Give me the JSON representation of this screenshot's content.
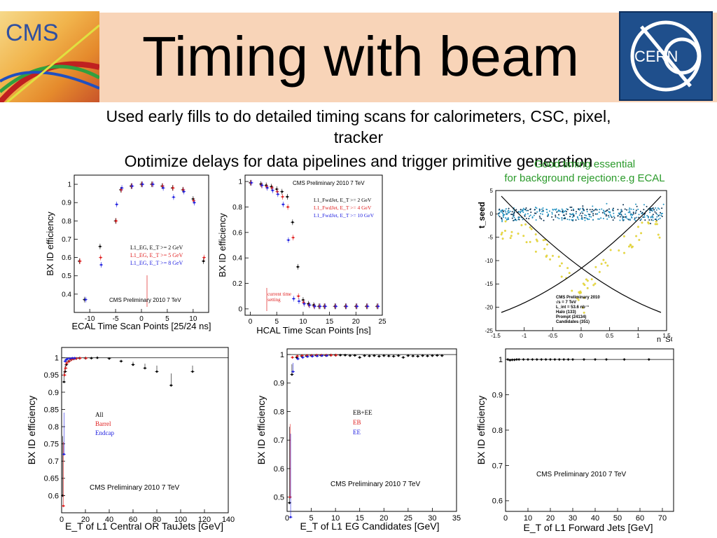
{
  "slide": {
    "title": "Timing with beam",
    "logos": {
      "left": "CMS",
      "right": "CERN"
    },
    "bullets": [
      "Used early fills to do detailed timing scans for calorimeters, CSC, pixel,",
      "tracker",
      "Optimize delays for data pipelines and trigger primitive generation"
    ],
    "note_line1": "Good timing essential",
    "note_line2": "for background rejection:e.g ECAL"
  },
  "colors": {
    "accent_bg": "#f8d4b8",
    "note_green": "#2a9a2a",
    "red": "#e02020",
    "blue": "#2020e0",
    "cern_blue": "#1f4f8c",
    "halo_yellow": "#f0e040",
    "prompt_cyan": "#2090c0"
  },
  "chart_data": [
    {
      "id": "ecal",
      "type": "scatter",
      "xlabel": "ECAL Time Scan Points [25/24 ns]",
      "ylabel": "BX ID efficiency",
      "xlim": [
        -13,
        13
      ],
      "ylim": [
        0.3,
        1.05
      ],
      "xticks": [
        "-10",
        "-5",
        "0",
        "5",
        "10"
      ],
      "xtick_vals": [
        -10,
        -5,
        0,
        5,
        10
      ],
      "yticks": [
        "0.4",
        "0.5",
        "0.6",
        "0.7",
        "0.8",
        "0.9",
        "1"
      ],
      "ytick_vals": [
        0.4,
        0.5,
        0.6,
        0.7,
        0.8,
        0.9,
        1.0
      ],
      "legend": [
        "L1_EG, E_T >= 2 GeV",
        "L1_EG, E_T >= 5 GeV",
        "L1_EG, E_T >= 8 GeV"
      ],
      "annotation": "CMS Preliminary 2010  7 TeV",
      "series": [
        {
          "name": "L1_EG, E_T >= 2 GeV",
          "color": "#000000",
          "x": [
            -12,
            -11,
            -8,
            -5,
            -4,
            -2,
            0,
            2,
            4,
            6,
            8,
            10,
            12
          ],
          "y": [
            0.58,
            0.37,
            0.66,
            0.8,
            0.97,
            0.99,
            1.0,
            1.0,
            0.99,
            0.98,
            0.97,
            0.92,
            0.58
          ]
        },
        {
          "name": "L1_EG, E_T >= 5 GeV",
          "color": "#e02020",
          "x": [
            -12,
            -8,
            -5,
            -4,
            -2,
            0,
            2,
            4,
            6,
            8,
            10,
            12
          ],
          "y": [
            0.58,
            0.6,
            0.8,
            0.97,
            0.99,
            1.0,
            1.0,
            0.99,
            0.98,
            0.97,
            0.91,
            0.6
          ]
        },
        {
          "name": "L1_EG, E_T >= 8 GeV",
          "color": "#2020e0",
          "x": [
            -11,
            -8,
            -5,
            -4,
            -2,
            0,
            2,
            4,
            6,
            8,
            10
          ],
          "y": [
            0.37,
            0.56,
            0.89,
            0.98,
            0.99,
            1.0,
            1.0,
            0.98,
            0.93,
            0.96,
            0.9
          ]
        }
      ]
    },
    {
      "id": "hcal",
      "type": "scatter",
      "xlabel": "HCAL Time Scan Points [ns]",
      "ylabel": "BX ID efficiency",
      "xlim": [
        -1,
        25
      ],
      "ylim": [
        -0.05,
        1.05
      ],
      "xticks": [
        "0",
        "5",
        "10",
        "15",
        "20",
        "25"
      ],
      "xtick_vals": [
        0,
        5,
        10,
        15,
        20,
        25
      ],
      "yticks": [
        "0",
        "0.2",
        "0.4",
        "0.6",
        "0.8",
        "1"
      ],
      "ytick_vals": [
        0,
        0.2,
        0.4,
        0.6,
        0.8,
        1.0
      ],
      "title": "CMS Preliminary 2010  7 TeV",
      "legend": [
        "L1_FwdJet, E_T >= 2 GeV",
        "L1_FwdJet, E_T >= 4 GeV",
        "L1_FwdJet, E_T >= 10 GeV"
      ],
      "annotation": "current time setting",
      "series": [
        {
          "name": "L1_FwdJet, E_T >= 2 GeV",
          "color": "#000000",
          "x": [
            0,
            2,
            3,
            4,
            5,
            6,
            7,
            8,
            9,
            10,
            11,
            12,
            13,
            14,
            16,
            18,
            20,
            22,
            24
          ],
          "y": [
            0.99,
            0.98,
            0.97,
            0.96,
            0.94,
            0.92,
            0.88,
            0.68,
            0.33,
            0.07,
            0.04,
            0.03,
            0.02,
            0.02,
            0.02,
            0.02,
            0.02,
            0.02,
            0.02
          ]
        },
        {
          "name": "L1_FwdJet, E_T >= 4 GeV",
          "color": "#e02020",
          "x": [
            0,
            2,
            3,
            4,
            5,
            6,
            7,
            8,
            9,
            10,
            11,
            12,
            13,
            14,
            16,
            18,
            20,
            22,
            24
          ],
          "y": [
            0.99,
            0.97,
            0.96,
            0.95,
            0.92,
            0.88,
            0.8,
            0.56,
            0.1,
            0.05,
            0.03,
            0.02,
            0.02,
            0.02,
            0.02,
            0.02,
            0.02,
            0.02,
            0.02
          ]
        },
        {
          "name": "L1_FwdJet, E_T >= 10 GeV",
          "color": "#2020e0",
          "x": [
            0,
            2,
            3,
            4,
            5,
            6,
            7,
            8,
            9,
            10,
            11,
            12,
            13,
            14,
            16,
            18,
            20,
            22,
            24
          ],
          "y": [
            0.99,
            0.97,
            0.95,
            0.93,
            0.9,
            0.82,
            0.54,
            0.08,
            0.06,
            0.04,
            0.03,
            0.02,
            0.02,
            0.02,
            0.02,
            0.02,
            0.02,
            0.02,
            0.02
          ]
        }
      ]
    },
    {
      "id": "tseed",
      "type": "scatter",
      "xlabel": "η_SC",
      "ylabel": "t_seed",
      "xlim": [
        -1.5,
        1.5
      ],
      "ylim": [
        -25,
        5
      ],
      "xticks": [
        "-1.5",
        "-1",
        "-0.5",
        "0",
        "0.5",
        "1",
        "1.5"
      ],
      "xtick_vals": [
        -1.5,
        -1,
        -0.5,
        0,
        0.5,
        1,
        1.5
      ],
      "yticks": [
        "5",
        "0",
        "-5",
        "-10",
        "-15",
        "-20",
        "-25"
      ],
      "ytick_vals": [
        5,
        0,
        -5,
        -10,
        -15,
        -20,
        -25
      ],
      "legend_lines": [
        "CMS Preliminary 2010",
        "√s = 7 TeV",
        "L_int = 53.6 nb⁻¹",
        "Halo (133)",
        "Prompt (24134)",
        "Candidates (351)"
      ]
    },
    {
      "id": "central_jets",
      "type": "scatter",
      "xlabel": "E_T of L1 Central OR TauJets [GeV]",
      "ylabel": "BX ID efficiency",
      "xlim": [
        0,
        140
      ],
      "ylim": [
        0.55,
        1.03
      ],
      "xticks": [
        "0",
        "20",
        "40",
        "60",
        "80",
        "100",
        "120",
        "140"
      ],
      "xtick_vals": [
        0,
        20,
        40,
        60,
        80,
        100,
        120,
        140
      ],
      "yticks": [
        "0.6",
        "0.65",
        "0.7",
        "0.75",
        "0.8",
        "0.85",
        "0.9",
        "0.95",
        "1"
      ],
      "ytick_vals": [
        0.6,
        0.65,
        0.7,
        0.75,
        0.8,
        0.85,
        0.9,
        0.95,
        1.0
      ],
      "legend": [
        "All",
        "Barrel",
        "Endcap"
      ],
      "annotation": "CMS Preliminary 2010  7 TeV",
      "series": [
        {
          "name": "All",
          "color": "#000000",
          "x": [
            1,
            2,
            3,
            4,
            6,
            8,
            10,
            12,
            15,
            20,
            25,
            30,
            40,
            50,
            60,
            70,
            80,
            92,
            110
          ],
          "y": [
            0.6,
            0.93,
            0.96,
            0.98,
            0.99,
            0.995,
            0.997,
            0.998,
            0.999,
            0.999,
            0.999,
            1.0,
            0.998,
            0.99,
            0.98,
            0.97,
            0.96,
            0.92,
            0.96
          ]
        },
        {
          "name": "Barrel",
          "color": "#e02020",
          "x": [
            1,
            2,
            3,
            4,
            6,
            8,
            10,
            12,
            15,
            20
          ],
          "y": [
            0.57,
            0.95,
            0.97,
            0.985,
            0.99,
            0.995,
            0.997,
            0.998,
            0.999,
            0.999
          ]
        },
        {
          "name": "Endcap",
          "color": "#2020e0",
          "x": [
            1,
            2,
            3,
            4,
            6,
            8,
            10
          ],
          "y": [
            0.72,
            0.99,
            0.995,
            0.997,
            0.998,
            0.999,
            0.999
          ]
        }
      ]
    },
    {
      "id": "eg_candidates",
      "type": "scatter",
      "xlabel": "E_T of L1 EG Candidates [GeV]",
      "ylabel": "BX ID efficiency",
      "xlim": [
        0,
        35
      ],
      "ylim": [
        0.45,
        1.02
      ],
      "xticks": [
        "0",
        "5",
        "10",
        "15",
        "20",
        "25",
        "30",
        "35"
      ],
      "xtick_vals": [
        0,
        5,
        10,
        15,
        20,
        25,
        30,
        35
      ],
      "yticks": [
        "0.5",
        "0.6",
        "0.7",
        "0.8",
        "0.9",
        "1"
      ],
      "ytick_vals": [
        0.5,
        0.6,
        0.7,
        0.8,
        0.9,
        1.0
      ],
      "legend": [
        "EB+EE",
        "EB",
        "EE"
      ],
      "annotation": "CMS Preliminary 2010  7 TeV",
      "series": [
        {
          "name": "EB+EE",
          "color": "#000000",
          "x": [
            0.5,
            1,
            2,
            3,
            4,
            5,
            6,
            7,
            8,
            9,
            10,
            11,
            12,
            13,
            14,
            15,
            16,
            17,
            18,
            19,
            20,
            21,
            22,
            23,
            24,
            25,
            26,
            27,
            28,
            29,
            30,
            31,
            32
          ],
          "y": [
            0.48,
            0.93,
            0.99,
            0.995,
            0.995,
            0.996,
            0.997,
            0.997,
            0.997,
            0.998,
            0.998,
            0.998,
            0.998,
            0.996,
            0.997,
            0.99,
            0.996,
            0.995,
            0.996,
            0.994,
            0.996,
            0.995,
            0.994,
            0.996,
            0.99,
            0.996,
            0.995,
            0.994,
            0.996,
            0.995,
            0.996,
            0.997,
            0.996
          ]
        },
        {
          "name": "EB",
          "color": "#e02020",
          "x": [
            0.5,
            1,
            2,
            3,
            4,
            5,
            6,
            7,
            8,
            9,
            10
          ],
          "y": [
            0.5,
            0.99,
            0.995,
            0.996,
            0.997,
            0.997,
            0.998,
            0.998,
            0.998,
            0.998,
            0.998
          ]
        },
        {
          "name": "EE",
          "color": "#2020e0",
          "x": [
            0.5,
            1,
            2,
            3,
            4,
            5,
            6,
            7,
            8
          ],
          "y": [
            0.43,
            0.94,
            0.985,
            0.99,
            0.993,
            0.994,
            0.995,
            0.996,
            0.996
          ]
        }
      ]
    },
    {
      "id": "forward_jets",
      "type": "scatter",
      "xlabel": "E_T of L1 Forward Jets [GeV]",
      "ylabel": "BX ID efficiency",
      "xlim": [
        0,
        75
      ],
      "ylim": [
        0.57,
        1.03
      ],
      "xticks": [
        "0",
        "10",
        "20",
        "30",
        "40",
        "50",
        "60",
        "70"
      ],
      "xtick_vals": [
        0,
        10,
        20,
        30,
        40,
        50,
        60,
        70
      ],
      "yticks": [
        "0.6",
        "0.7",
        "0.8",
        "0.9",
        "1"
      ],
      "ytick_vals": [
        0.6,
        0.7,
        0.8,
        0.9,
        1.0
      ],
      "annotation": "CMS Preliminary 2010  7 TeV",
      "series": [
        {
          "name": "",
          "color": "#000000",
          "x": [
            1,
            2,
            3,
            4,
            5,
            6,
            8,
            10,
            12,
            14,
            16,
            18,
            20,
            22,
            24,
            26,
            28,
            30,
            35,
            40,
            45,
            53,
            64
          ],
          "y": [
            1.0,
            0.998,
            0.999,
            0.999,
            1.0,
            1.0,
            1.0,
            1.0,
            1.0,
            1.0,
            1.0,
            1.0,
            1.0,
            1.0,
            1.0,
            1.0,
            1.0,
            1.0,
            1.0,
            1.0,
            1.0,
            1.0,
            1.0
          ]
        }
      ]
    }
  ]
}
